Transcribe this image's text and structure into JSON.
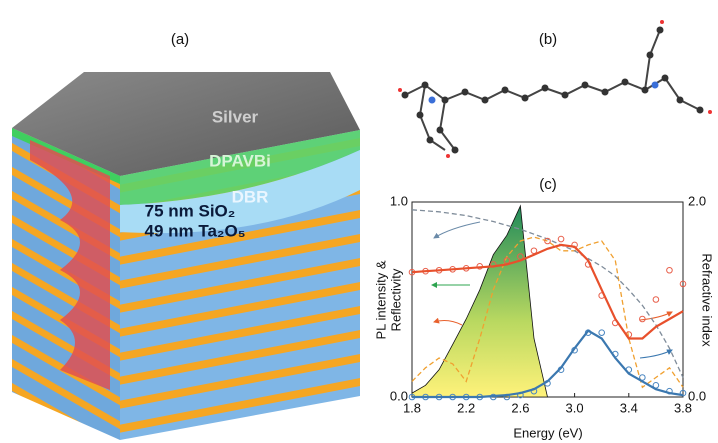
{
  "illustration": {
    "label": "(a)",
    "layers": [
      "Silver",
      "DPAVBi",
      "DBR",
      "75 nm SiO₂",
      "49 nm Ta₂O₅"
    ]
  },
  "molecule": {
    "label": "(b)"
  },
  "chart_data": {
    "type": "line",
    "label": "(c)",
    "xlabel": "Energy (eV)",
    "ylabel": [
      "PL intensity &",
      "Reflectivity"
    ],
    "y2label": "Refractive index",
    "xlim": [
      1.8,
      3.8
    ],
    "xticks": [
      1.8,
      2.2,
      2.6,
      {
        "value": 3,
        "label": "3.0"
      },
      3.4,
      3.8
    ],
    "ylim": [
      0,
      1
    ],
    "yticks": [
      {
        "value": 0,
        "label": "0.0"
      },
      {
        "value": 1,
        "label": "1.0"
      }
    ],
    "y2lim": [
      0,
      2
    ],
    "y2ticks": [
      {
        "value": 0,
        "label": "0.0"
      },
      {
        "value": 2,
        "label": "2.0"
      }
    ],
    "x": [
      1.8,
      1.9,
      2.0,
      2.1,
      2.2,
      2.3,
      2.4,
      2.5,
      2.6,
      2.7,
      2.8,
      2.9,
      3.0,
      3.1,
      3.2,
      3.3,
      3.4,
      3.5,
      3.6,
      3.7,
      3.8
    ],
    "series": [
      {
        "style": "area",
        "color": "#2e8b57",
        "values": [
          0.02,
          0.06,
          0.14,
          0.27,
          0.4,
          0.55,
          0.73,
          0.83,
          0.98,
          0.3,
          0,
          null,
          null,
          null,
          null,
          null,
          null,
          null,
          null,
          null,
          null
        ]
      },
      {
        "style": "dashed",
        "color": "#f0a030",
        "values": [
          0.08,
          0.15,
          0.2,
          0.17,
          0.08,
          0.3,
          0.55,
          0.72,
          0.8,
          0.82,
          0.8,
          0.75,
          0.75,
          0.78,
          0.8,
          0.7,
          0.3,
          0.05,
          0.1,
          0.15,
          0.05
        ]
      },
      {
        "style": "dashed",
        "color": "#7f8c9a",
        "axis": "y2",
        "values": [
          1.92,
          1.91,
          1.9,
          1.88,
          1.86,
          1.83,
          1.8,
          1.76,
          1.72,
          1.67,
          1.62,
          1.56,
          1.5,
          1.42,
          1.34,
          1.24,
          1.1,
          0.94,
          0.74,
          0.5,
          0.2
        ]
      },
      {
        "style": "markers",
        "color": "#e8604c",
        "values": [
          0.64,
          0.645,
          0.65,
          0.655,
          0.66,
          0.67,
          0.68,
          0.7,
          0.72,
          0.75,
          0.8,
          0.81,
          0.78,
          0.68,
          0.52,
          0.38,
          0.32,
          0.4,
          0.5,
          0.65,
          0.58
        ]
      },
      {
        "style": "line",
        "color": "#e8502c",
        "values": [
          0.64,
          0.645,
          0.65,
          0.655,
          0.66,
          0.665,
          0.67,
          0.68,
          0.7,
          0.73,
          0.76,
          0.78,
          0.77,
          0.7,
          0.55,
          0.4,
          0.3,
          0.3,
          0.36,
          0.4,
          0.44
        ]
      },
      {
        "style": "markers",
        "color": "#4a86c0",
        "values": [
          0,
          0,
          0,
          0,
          0,
          0,
          0,
          0,
          0.01,
          0.03,
          0.07,
          0.14,
          0.24,
          0.33,
          0.33,
          0.22,
          0.14,
          0.1,
          0.06,
          0.03,
          0.02
        ]
      },
      {
        "style": "line",
        "color": "#3b78b0",
        "values": [
          0,
          0,
          0,
          0,
          0,
          0,
          0.005,
          0.01,
          0.02,
          0.04,
          0.08,
          0.15,
          0.25,
          0.34,
          0.3,
          0.2,
          0.12,
          0.08,
          0.04,
          0.02,
          0.01
        ]
      }
    ]
  }
}
